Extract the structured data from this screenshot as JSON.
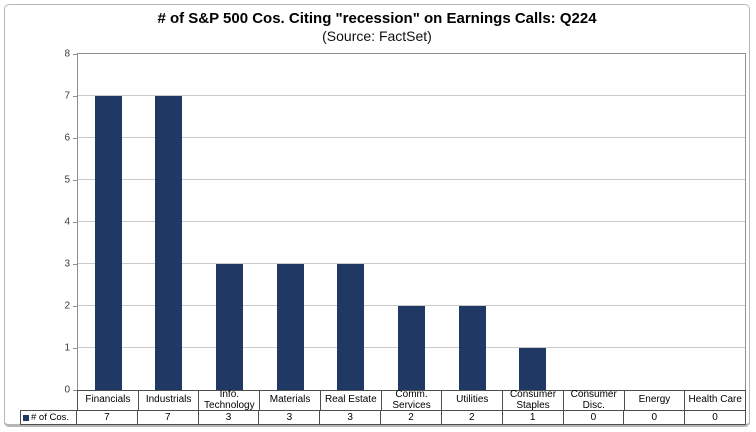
{
  "title": "# of S&P 500 Cos. Citing \"recession\" on Earnings Calls: Q224",
  "subtitle": "(Source: FactSet)",
  "legend": {
    "series_label": "# of Cos."
  },
  "colors": {
    "bar": "#1f3864",
    "gridline": "#cacaca",
    "plot_border": "#8f8f8f",
    "table_border": "#4d4d4d",
    "outer_border": "#b6b6b6"
  },
  "chart_data": {
    "type": "bar",
    "title": "# of S&P 500 Cos. Citing \"recession\" on Earnings Calls: Q224",
    "subtitle": "(Source: FactSet)",
    "series": [
      {
        "name": "# of Cos.",
        "values": [
          7,
          7,
          3,
          3,
          3,
          2,
          2,
          1,
          0,
          0,
          0
        ]
      }
    ],
    "categories": [
      "Financials",
      "Industrials",
      "Info. Technology",
      "Materials",
      "Real Estate",
      "Comm. Services",
      "Utilities",
      "Consumer Staples",
      "Consumer Disc.",
      "Energy",
      "Health Care"
    ],
    "xlabel": "",
    "ylabel": "",
    "ylim": [
      0,
      8
    ],
    "yticks": [
      0,
      1,
      2,
      3,
      4,
      5,
      6,
      7,
      8
    ],
    "grid": "horizontal",
    "legend_position": "bottom-left",
    "data_table_below_axis": true,
    "bar_color": "#1f3864"
  }
}
